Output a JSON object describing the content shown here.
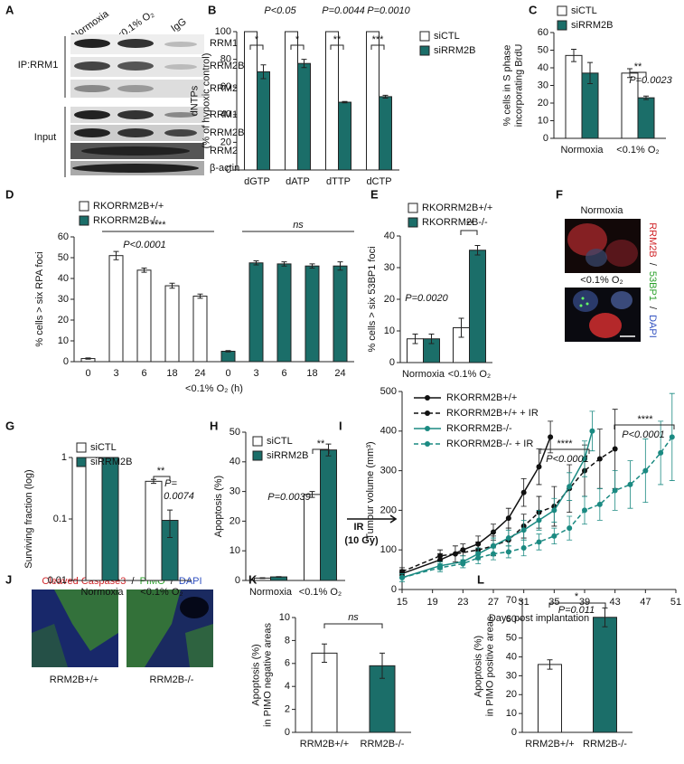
{
  "panel_labels": [
    "A",
    "B",
    "C",
    "D",
    "E",
    "F",
    "G",
    "H",
    "I",
    "J",
    "K",
    "L"
  ],
  "panel_a": {
    "columns": [
      "Normoxia",
      "<0.1% O₂",
      "IgG"
    ],
    "ip_label": "IP:RRM1",
    "ip_rows": [
      "RRM1",
      "RRM2B",
      "RRM2"
    ],
    "input_label": "Input",
    "input_rows": [
      "RRM1",
      "RRM2B",
      "RRM2",
      "β-actin"
    ]
  },
  "panel_f": {
    "conditions": [
      "Normoxia",
      "<0.1% O₂"
    ],
    "stain": [
      "RRM2B",
      "/",
      "53BP1",
      "/",
      "DAPI"
    ]
  },
  "panel_j": {
    "stain": [
      "Cleaved Caspase3",
      "/",
      "PIMO",
      "/",
      "DAPI"
    ],
    "genotypes": [
      "RRM2B+/+",
      "RRM2B-/-"
    ]
  },
  "chart_data": [
    {
      "type": "bar",
      "ylabel": [
        "dNTPs",
        "(% of hypoxic control)"
      ],
      "categories": [
        "dGTP",
        "dATP",
        "dTTP",
        "dCTP"
      ],
      "series": [
        {
          "name": "siCTL",
          "color": "#ffffff",
          "values": [
            100,
            100,
            100,
            100
          ]
        },
        {
          "name": "siRRM2B",
          "color": "#1b6e69",
          "values": [
            71,
            77,
            49,
            53
          ],
          "errors": [
            5,
            3,
            0.5,
            1
          ]
        }
      ],
      "ylim": [
        0,
        100
      ],
      "yticks": [
        0,
        20,
        40,
        60,
        80,
        100
      ],
      "annotations": [
        "P<0.05",
        "P=0.0044",
        "P=0.0010",
        "*",
        "*",
        "**",
        "***"
      ]
    },
    {
      "type": "bar",
      "ylabel": [
        "% cells in S phase",
        "incorporating BrdU"
      ],
      "categories": [
        "Normoxia",
        "<0.1% O₂"
      ],
      "series": [
        {
          "name": "siCTL",
          "color": "#ffffff",
          "values": [
            47,
            37
          ],
          "errors": [
            3.5,
            2.5
          ]
        },
        {
          "name": "siRRM2B",
          "color": "#1b6e69",
          "values": [
            37,
            23
          ],
          "errors": [
            6,
            1
          ]
        }
      ],
      "ylim": [
        0,
        60
      ],
      "yticks": [
        0,
        10,
        20,
        30,
        40,
        50,
        60
      ],
      "annotations": [
        "**",
        "P=0.0023"
      ]
    },
    {
      "type": "bar",
      "ylabel": [
        "% cells > six RPA foci"
      ],
      "xlabel": "<0.1% O₂ (h)",
      "categories": [
        "0",
        "3",
        "6",
        "18",
        "24",
        "0",
        "3",
        "6",
        "18",
        "24"
      ],
      "series": [
        {
          "name": "RKORRM2B+/+",
          "color": "#ffffff",
          "values": [
            1.5,
            51,
            44,
            36.5,
            31.5,
            null,
            null,
            null,
            null,
            null
          ],
          "errors": [
            0.3,
            2,
            1,
            1.2,
            1,
            null,
            null,
            null,
            null,
            null
          ]
        },
        {
          "name": "RKORRM2B-/-",
          "color": "#1b6e69",
          "values": [
            null,
            null,
            null,
            null,
            null,
            5,
            47.5,
            47,
            46,
            46
          ],
          "errors": [
            null,
            null,
            null,
            null,
            null,
            0.3,
            1,
            1,
            1,
            2
          ]
        }
      ],
      "ylim": [
        0,
        60
      ],
      "yticks": [
        0,
        10,
        20,
        30,
        40,
        50,
        60
      ],
      "annotations": [
        "****",
        "P<0.0001",
        "ns"
      ]
    },
    {
      "type": "bar",
      "ylabel": [
        "% cells > six 53BP1 foci"
      ],
      "categories": [
        "Normoxia",
        "<0.1% O₂"
      ],
      "series": [
        {
          "name": "RKORRM2B+/+",
          "color": "#ffffff",
          "values": [
            7.5,
            11
          ],
          "errors": [
            1.5,
            3
          ]
        },
        {
          "name": "RKORRM2B-/-",
          "color": "#1b6e69",
          "values": [
            7.5,
            35.5
          ],
          "errors": [
            1.5,
            1.5
          ]
        }
      ],
      "ylim": [
        0,
        40
      ],
      "yticks": [
        0,
        10,
        20,
        30,
        40
      ],
      "annotations": [
        "**",
        "P=0.0020"
      ]
    },
    {
      "type": "bar",
      "ylabel": [
        "Surviving fraction (log)"
      ],
      "categories": [
        "Normoxia",
        "<0.1% O₂"
      ],
      "log_scale": true,
      "series": [
        {
          "name": "siCTL",
          "color": "#ffffff",
          "values": [
            1,
            0.41
          ],
          "errors": [
            0,
            0.03
          ]
        },
        {
          "name": "siRRM2B",
          "color": "#1b6e69",
          "values": [
            1,
            0.095
          ],
          "errors": [
            0,
            0.045
          ]
        }
      ],
      "ylim": [
        0.01,
        1
      ],
      "yticks": [
        0.01,
        0.1,
        1
      ],
      "annotations": [
        "**",
        "P=",
        "0.0074"
      ]
    },
    {
      "type": "bar",
      "ylabel": [
        "Apoptosis (%)"
      ],
      "categories": [
        "Normoxia",
        "<0.1% O₂"
      ],
      "series": [
        {
          "name": "siCTL",
          "color": "#ffffff",
          "values": [
            0.8,
            29
          ],
          "errors": [
            0.1,
            1
          ]
        },
        {
          "name": "siRRM2B",
          "color": "#1b6e69",
          "values": [
            1.2,
            44
          ],
          "errors": [
            0.1,
            2
          ]
        }
      ],
      "ylim": [
        0,
        50
      ],
      "yticks": [
        0,
        10,
        20,
        30,
        40,
        50
      ],
      "annotations": [
        "**",
        "P=0.0039"
      ]
    },
    {
      "type": "line",
      "ylabel": [
        "Tumour volume (mm³)"
      ],
      "xlabel": "Days post implantation",
      "series": [
        {
          "name": "RKORRM2B+/+",
          "color": "#111111",
          "dashed": false,
          "x": [
            15,
            20,
            23,
            25,
            27,
            29,
            31,
            33,
            34.5
          ],
          "values": [
            40,
            75,
            100,
            115,
            145,
            180,
            245,
            310,
            385
          ],
          "errors": [
            10,
            15,
            15,
            20,
            20,
            25,
            35,
            45,
            40
          ]
        },
        {
          "name": "RKORRM2B+/+ + IR",
          "color": "#111111",
          "dashed": true,
          "x": [
            15,
            20,
            22,
            25,
            27,
            29,
            31,
            33,
            35,
            37,
            39,
            41,
            43
          ],
          "values": [
            45,
            85,
            90,
            100,
            110,
            125,
            160,
            195,
            210,
            255,
            300,
            330,
            355
          ],
          "errors": [
            10,
            15,
            20,
            20,
            25,
            30,
            30,
            40,
            50,
            60,
            65,
            75,
            100
          ]
        },
        {
          "name": "RKORRM2B-/-",
          "color": "#1b8a82",
          "dashed": false,
          "x": [
            15,
            20,
            23,
            25,
            27,
            29,
            31,
            33,
            35,
            37,
            39,
            40
          ],
          "values": [
            30,
            60,
            70,
            90,
            110,
            130,
            150,
            175,
            200,
            260,
            330,
            400
          ],
          "errors": [
            10,
            10,
            15,
            15,
            20,
            20,
            25,
            25,
            30,
            35,
            45,
            50
          ]
        },
        {
          "name": "RKORRM2B-/- + IR",
          "color": "#1b8a82",
          "dashed": true,
          "x": [
            15,
            20,
            23,
            25,
            27,
            29,
            31,
            33,
            35,
            37,
            39,
            41,
            43,
            45,
            47,
            49,
            50.5
          ],
          "values": [
            30,
            55,
            65,
            80,
            90,
            95,
            105,
            120,
            135,
            155,
            200,
            215,
            250,
            265,
            300,
            345,
            385
          ],
          "errors": [
            10,
            10,
            10,
            15,
            15,
            15,
            20,
            20,
            20,
            30,
            35,
            40,
            50,
            60,
            80,
            80,
            110
          ]
        }
      ],
      "xlim": [
        15,
        51
      ],
      "xticks": [
        15,
        19,
        23,
        27,
        31,
        35,
        39,
        43,
        47,
        51
      ],
      "ylim": [
        0,
        500
      ],
      "yticks": [
        0,
        100,
        200,
        300,
        400,
        500
      ],
      "annotations": [
        "****",
        "P<0.0001",
        "****",
        "P<0.0001",
        "IR",
        "(10 Gy)"
      ]
    },
    {
      "type": "bar",
      "ylabel": [
        "Apoptosis (%)",
        "in PIMO negative areas"
      ],
      "categories": [
        "RRM2B+/+",
        "RRM2B-/-"
      ],
      "values": [
        6.9,
        5.8
      ],
      "errors": [
        0.8,
        1.1
      ],
      "colors": [
        "#ffffff",
        "#1b6e69"
      ],
      "ylim": [
        0,
        10
      ],
      "yticks": [
        0,
        2,
        4,
        6,
        8,
        10
      ],
      "annotations": [
        "ns"
      ]
    },
    {
      "type": "bar",
      "ylabel": [
        "Apoptosis (%)",
        "in PIMO positive areas"
      ],
      "categories": [
        "RRM2B+/+",
        "RRM2B-/-"
      ],
      "values": [
        36,
        61
      ],
      "errors": [
        2.5,
        5
      ],
      "colors": [
        "#ffffff",
        "#1b6e69"
      ],
      "ylim": [
        0,
        70
      ],
      "yticks": [
        0,
        10,
        20,
        30,
        40,
        50,
        60,
        70
      ],
      "annotations": [
        "*",
        "P=0.011"
      ]
    }
  ]
}
